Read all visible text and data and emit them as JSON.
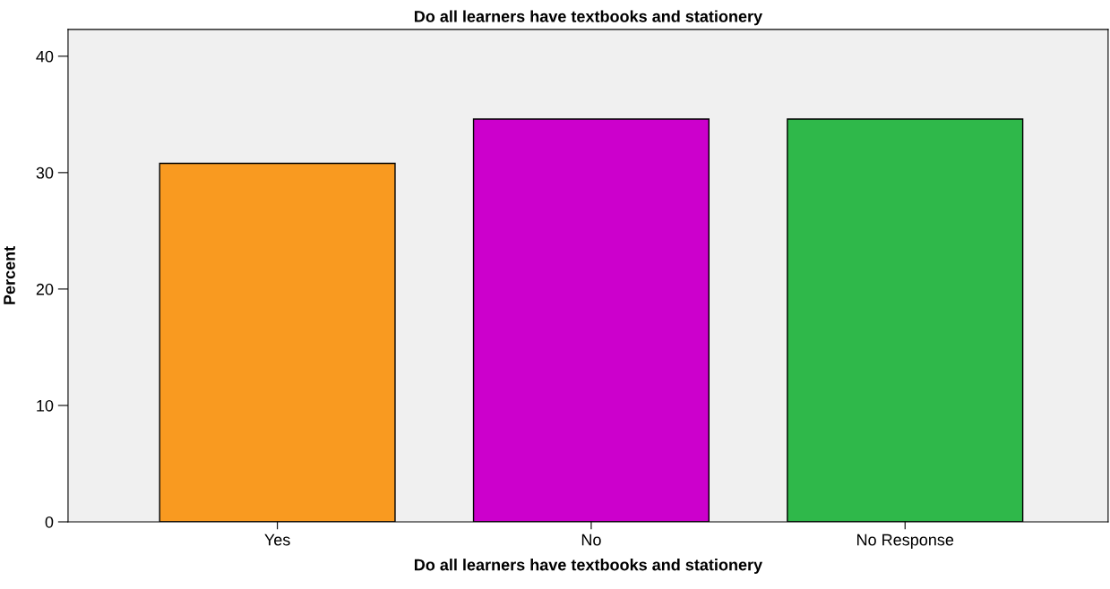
{
  "chart_data": {
    "type": "bar",
    "title": "Do all learners have textbooks and stationery",
    "xlabel": "Do all learners have textbooks and stationery",
    "ylabel": "Percent",
    "categories": [
      "Yes",
      "No",
      "No Response"
    ],
    "values": [
      30.8,
      34.6,
      34.6
    ],
    "colors": [
      "#f99a20",
      "#cc00cc",
      "#2fb84a"
    ],
    "ylim": [
      0,
      42.3
    ],
    "yticks": [
      0,
      10,
      20,
      30,
      40
    ],
    "grid": false,
    "legend": false
  }
}
